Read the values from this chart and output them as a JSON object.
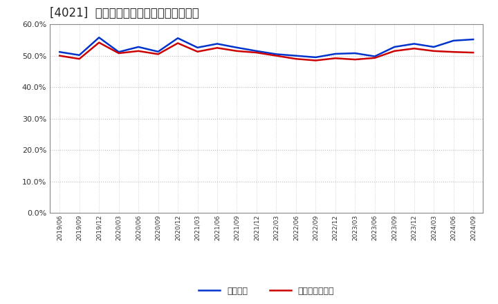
{
  "title": "[4021]  固定比率、固定長期適合率の推移",
  "x_labels": [
    "2019/06",
    "2019/09",
    "2019/12",
    "2020/03",
    "2020/06",
    "2020/09",
    "2020/12",
    "2021/03",
    "2021/06",
    "2021/09",
    "2021/12",
    "2022/03",
    "2022/06",
    "2022/09",
    "2022/12",
    "2023/03",
    "2023/06",
    "2023/09",
    "2023/12",
    "2024/03",
    "2024/06",
    "2024/09"
  ],
  "fixed_ratio": [
    51.2,
    50.2,
    55.8,
    51.2,
    52.8,
    51.3,
    55.6,
    52.6,
    53.8,
    52.6,
    51.5,
    50.5,
    50.0,
    49.5,
    50.6,
    50.8,
    49.8,
    52.8,
    53.8,
    52.8,
    54.8,
    55.2
  ],
  "fixed_long_ratio": [
    50.0,
    49.0,
    54.2,
    50.8,
    51.5,
    50.5,
    54.0,
    51.3,
    52.5,
    51.5,
    51.0,
    50.0,
    49.0,
    48.5,
    49.2,
    48.8,
    49.3,
    51.5,
    52.3,
    51.5,
    51.2,
    51.0
  ],
  "line1_color": "#0033cc",
  "line2_color": "#cc0000",
  "line1_label": "固定比率",
  "line2_label": "固定長期適合率",
  "ylim": [
    0,
    60
  ],
  "yticks": [
    0,
    10,
    20,
    30,
    40,
    50,
    60
  ],
  "background_color": "#ffffff",
  "grid_color": "#bbbbbb",
  "title_fontsize": 12,
  "line_width": 1.8
}
